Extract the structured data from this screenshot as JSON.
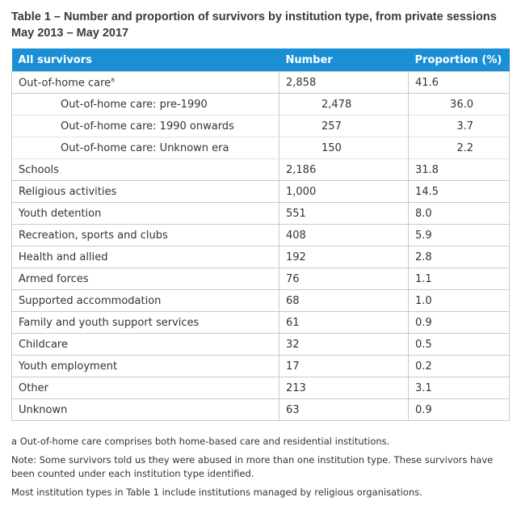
{
  "title_lines": [
    "Table 1 – Number and proportion of survivors by institution type, from private sessions",
    "May 2013 – May 2017"
  ],
  "table": {
    "header": [
      "All survivors",
      "Number",
      "Proportion (%)"
    ],
    "rows": [
      {
        "label": "Out-of-home care",
        "note": "a",
        "number": "2,858",
        "proportion": "41.6",
        "subrows": [
          {
            "label": "Out-of-home care: pre-1990",
            "number": "2,478",
            "proportion": "36.0"
          },
          {
            "label": "Out-of-home care: 1990 onwards",
            "number": "257",
            "proportion": "3.7"
          },
          {
            "label": "Out-of-home care: Unknown era",
            "number": "150",
            "proportion": "2.2"
          }
        ]
      },
      {
        "label": "Schools",
        "number": "2,186",
        "proportion": "31.8"
      },
      {
        "label": "Religious activities",
        "number": "1,000",
        "proportion": "14.5"
      },
      {
        "label": "Youth detention",
        "number": "551",
        "proportion": "8.0"
      },
      {
        "label": "Recreation, sports and clubs",
        "number": "408",
        "proportion": "5.9"
      },
      {
        "label": "Health and allied",
        "number": "192",
        "proportion": "2.8"
      },
      {
        "label": "Armed forces",
        "number": "76",
        "proportion": "1.1"
      },
      {
        "label": "Supported accommodation",
        "number": "68",
        "proportion": "1.0"
      },
      {
        "label": "Family and youth support services",
        "number": "61",
        "proportion": "0.9"
      },
      {
        "label": "Childcare",
        "number": "32",
        "proportion": "0.5"
      },
      {
        "label": "Youth employment",
        "number": "17",
        "proportion": "0.2"
      },
      {
        "label": "Other",
        "number": "213",
        "proportion": "3.1"
      },
      {
        "label": "Unknown",
        "number": "63",
        "proportion": "0.9"
      }
    ]
  },
  "footnotes": {
    "marker": "a",
    "items": [
      "Out-of-home care comprises both home-based care and residential institutions.",
      "Note: Some survivors told us they were abused in more than one institution type. These survivors have been counted under each institution type identified.",
      "Most institution types in Table 1 include institutions managed by religious organisations."
    ]
  }
}
